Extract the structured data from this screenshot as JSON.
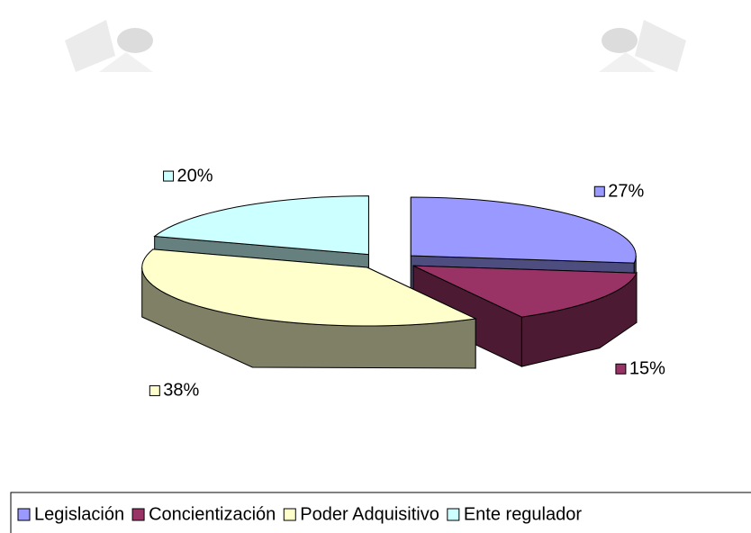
{
  "chart_data": {
    "type": "pie3d",
    "categories": [
      "Legislación",
      "Concientización",
      "Poder Adquisitivo",
      "Ente regulador"
    ],
    "values": [
      27,
      15,
      38,
      20
    ],
    "value_labels": [
      "27%",
      "15%",
      "38%",
      "20%"
    ],
    "colors": [
      "#9999ff",
      "#993366",
      "#ffffcc",
      "#ccffff"
    ],
    "legend": "bottom"
  }
}
